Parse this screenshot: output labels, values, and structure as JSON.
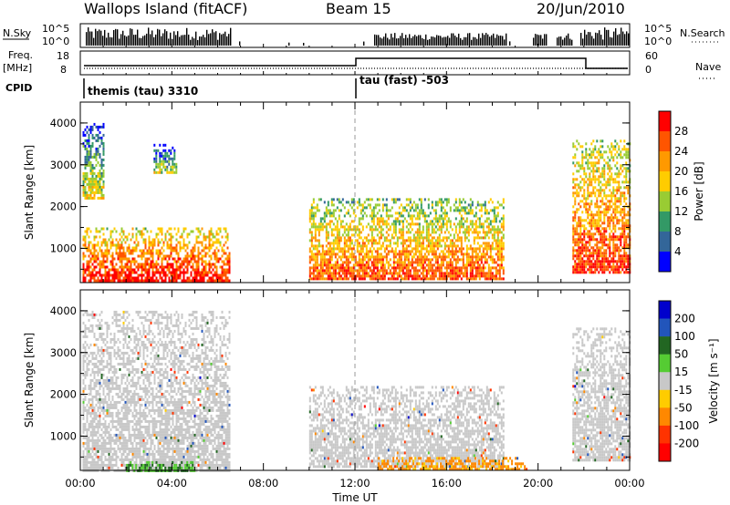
{
  "header": {
    "station": "Wallops Island (fitACF)",
    "beam": "Beam 15",
    "date": "20/Jun/2010"
  },
  "strips": {
    "nsky_label": "N.Sky",
    "nsky_ticks": [
      "10^5",
      "10^0"
    ],
    "nsearch_ticks": [
      "10^5",
      "10^0"
    ],
    "nsearch_label": "N.Search",
    "freq_label": "Freq.",
    "freq_unit": "[MHz]",
    "freq_ticks": [
      "18",
      "8"
    ],
    "nave_ticks": [
      "60",
      "0"
    ],
    "nave_label": "Nave",
    "cpid_label": "CPID",
    "cpid_1": "themis (tau) 3310",
    "cpid_2": "tau (fast) -503"
  },
  "axes": {
    "ylabel": "Slant Range [km]",
    "xlabel": "Time UT",
    "x_ticks": [
      "00:00",
      "04:00",
      "08:00",
      "12:00",
      "16:00",
      "20:00",
      "00:00"
    ],
    "y_ticks": [
      "1000",
      "2000",
      "3000",
      "4000"
    ]
  },
  "colorbars": {
    "power_label": "Power [dB]",
    "power_ticks": [
      "28",
      "24",
      "20",
      "16",
      "12",
      "8",
      "4"
    ],
    "power_colors": [
      "#ff0000",
      "#ff5500",
      "#ff9900",
      "#ffcc00",
      "#99cc33",
      "#339966",
      "#336699",
      "#0000ff"
    ],
    "velocity_label": "Velocity [m s⁻¹]",
    "velocity_ticks": [
      "200",
      "100",
      "50",
      "15",
      "-15",
      "-50",
      "-100",
      "-200"
    ],
    "velocity_colors": [
      "#0000cc",
      "#2255bb",
      "#226622",
      "#55cc33",
      "#c8c8c8",
      "#ffcc00",
      "#ff8800",
      "#ff3300",
      "#ff0000"
    ]
  },
  "chart_data": [
    {
      "type": "heatmap",
      "title": "Power",
      "x_range_hours_ut": [
        0,
        24
      ],
      "ylim": [
        180,
        4500
      ],
      "ylabel": "Slant Range [km]",
      "colorbar": "Power [dB]",
      "colorbar_range": [
        0,
        30
      ],
      "cpid_change_ut": "12:00",
      "echo_regions": [
        {
          "t_start": 0.1,
          "t_end": 1.0,
          "range_start": 2200,
          "range_end": 4000,
          "power": 10
        },
        {
          "t_start": 0.1,
          "t_end": 6.5,
          "range_start": 200,
          "range_end": 1500,
          "power": 22
        },
        {
          "t_start": 3.2,
          "t_end": 4.2,
          "range_start": 2800,
          "range_end": 3500,
          "power": 8
        },
        {
          "t_start": 10.0,
          "t_end": 18.5,
          "range_start": 300,
          "range_end": 2200,
          "power": 18
        },
        {
          "t_start": 21.5,
          "t_end": 24.0,
          "range_start": 400,
          "range_end": 3600,
          "power": 20
        }
      ]
    },
    {
      "type": "heatmap",
      "title": "Velocity",
      "x_range_hours_ut": [
        0,
        24
      ],
      "ylim": [
        180,
        4500
      ],
      "ylabel": "Slant Range [km]",
      "colorbar": "Velocity [m s-1]",
      "colorbar_range": [
        -250,
        250
      ],
      "echo_regions": [
        {
          "t_start": 0.1,
          "t_end": 6.5,
          "range_start": 200,
          "range_end": 4000,
          "velocity": 0
        },
        {
          "t_start": 10.0,
          "t_end": 18.5,
          "range_start": 300,
          "range_end": 2200,
          "velocity": 0
        },
        {
          "t_start": 13.0,
          "t_end": 19.5,
          "range_start": 200,
          "range_end": 500,
          "velocity": -40
        },
        {
          "t_start": 21.5,
          "t_end": 24.0,
          "range_start": 400,
          "range_end": 3600,
          "velocity": 0
        },
        {
          "t_start": 2.0,
          "t_end": 5.0,
          "range_start": 200,
          "range_end": 400,
          "velocity": 30
        }
      ]
    }
  ]
}
